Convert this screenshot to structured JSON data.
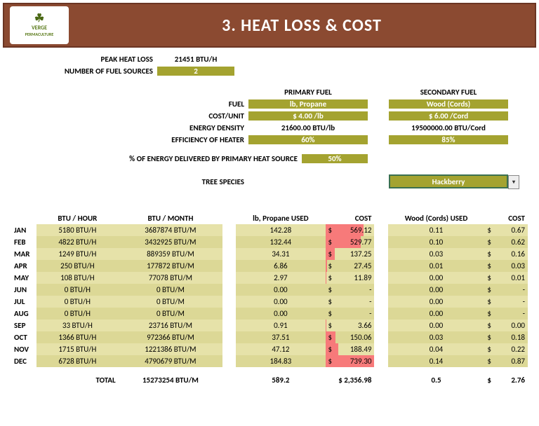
{
  "header": {
    "brand_top": "VERGE",
    "brand_bot": "PERMACULTURE",
    "title": "3. HEAT LOSS & COST"
  },
  "top": {
    "peak_label": "PEAK HEAT LOSS",
    "peak_val": "21451 BTU/H",
    "nsrc_label": "NUMBER OF FUEL SOURCES",
    "nsrc_val": "2"
  },
  "fuels": {
    "primary_hdr": "PRIMARY FUEL",
    "secondary_hdr": "SECONDARY FUEL",
    "fuel_lbl": "FUEL",
    "cost_lbl": "COST/UNIT",
    "ed_lbl": "ENERGY DENSITY",
    "eff_lbl": "EFFICIENCY OF HEATER",
    "p_fuel": "lb, Propane",
    "p_cost": "$ 4.00 /lb",
    "p_ed": "21600.00 BTU/lb",
    "p_eff": "60%",
    "s_fuel": "Wood (Cords)",
    "s_cost": "$ 6.00 /Cord",
    "s_ed": "19500000.00 BTU/Cord",
    "s_eff": "85%",
    "pct_lbl": "% OF ENERGY DELIVERED BY PRIMARY HEAT SOURCE",
    "pct_val": "50%",
    "tree_lbl": "TREE SPECIES",
    "tree_val": "Hackberry"
  },
  "tbl": {
    "h_btu_h": "BTU / HOUR",
    "h_btu_m": "BTU / MONTH",
    "h_p_used": "lb, Propane USED",
    "h_cost": "COST",
    "h_s_used": "Wood (Cords) USED",
    "h_cost2": "COST",
    "rows": [
      {
        "m": "JAN",
        "bh": "5180 BTU/H",
        "bm": "3687874 BTU/M",
        "pu": "142.28",
        "pc": "569.12",
        "pw": 78,
        "su": "0.11",
        "sc": "0.67"
      },
      {
        "m": "FEB",
        "bh": "4822 BTU/H",
        "bm": "3432925 BTU/M",
        "pu": "132.44",
        "pc": "529.77",
        "pw": 72,
        "su": "0.10",
        "sc": "0.62"
      },
      {
        "m": "MAR",
        "bh": "1249 BTU/H",
        "bm": "889359 BTU/M",
        "pu": "34.31",
        "pc": "137.25",
        "pw": 19,
        "su": "0.03",
        "sc": "0.16"
      },
      {
        "m": "APR",
        "bh": "250 BTU/H",
        "bm": "177872 BTU/M",
        "pu": "6.86",
        "pc": "27.45",
        "pw": 4,
        "su": "0.01",
        "sc": "0.03"
      },
      {
        "m": "MAY",
        "bh": "108 BTU/H",
        "bm": "77078 BTU/M",
        "pu": "2.97",
        "pc": "11.89",
        "pw": 2,
        "su": "0.00",
        "sc": "0.01"
      },
      {
        "m": "JUN",
        "bh": "0 BTU/H",
        "bm": "0 BTU/M",
        "pu": "0.00",
        "pc": "-",
        "pw": 0,
        "su": "0.00",
        "sc": "-"
      },
      {
        "m": "JUL",
        "bh": "0 BTU/H",
        "bm": "0 BTU/M",
        "pu": "0.00",
        "pc": "-",
        "pw": 0,
        "su": "0.00",
        "sc": "-"
      },
      {
        "m": "AUG",
        "bh": "0 BTU/H",
        "bm": "0 BTU/M",
        "pu": "0.00",
        "pc": "-",
        "pw": 0,
        "su": "0.00",
        "sc": "-"
      },
      {
        "m": "SEP",
        "bh": "33 BTU/H",
        "bm": "23716 BTU/M",
        "pu": "0.91",
        "pc": "3.66",
        "pw": 1,
        "su": "0.00",
        "sc": "0.00"
      },
      {
        "m": "OCT",
        "bh": "1366 BTU/H",
        "bm": "972366 BTU/M",
        "pu": "37.51",
        "pc": "150.06",
        "pw": 21,
        "su": "0.03",
        "sc": "0.18"
      },
      {
        "m": "NOV",
        "bh": "1715 BTU/H",
        "bm": "1221386 BTU/M",
        "pu": "47.12",
        "pc": "188.49",
        "pw": 26,
        "su": "0.04",
        "sc": "0.22"
      },
      {
        "m": "DEC",
        "bh": "6728 BTU/H",
        "bm": "4790679 BTU/M",
        "pu": "184.83",
        "pc": "739.30",
        "pw": 100,
        "su": "0.14",
        "sc": "0.87"
      }
    ],
    "tot_lbl": "TOTAL",
    "tot_bm": "15273254 BTU/M",
    "tot_pu": "589.2",
    "tot_pc": "$ 2,356.98",
    "tot_su": "0.5",
    "tot_sc": "2.76"
  },
  "colors": {
    "olive": "#a4a330",
    "pale1": "#e6e2a9",
    "pale2": "#dcd896",
    "red": "#f77a7a",
    "header": "#8b4a31"
  }
}
